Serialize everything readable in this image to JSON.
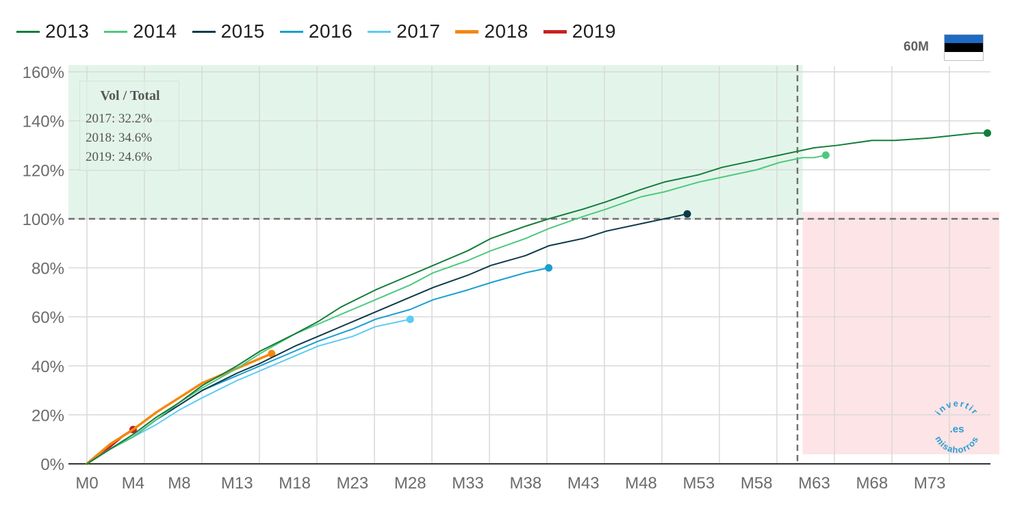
{
  "chart_data": {
    "type": "line",
    "title": "",
    "xlabel": "",
    "ylabel": "",
    "x_range": [
      0,
      79
    ],
    "ylim": [
      0,
      160
    ],
    "x_ticks": [
      0,
      4,
      8,
      13,
      18,
      23,
      28,
      33,
      38,
      43,
      48,
      53,
      58,
      63,
      68,
      73
    ],
    "x_tick_labels": [
      "M0",
      "M4",
      "M8",
      "M13",
      "M18",
      "M23",
      "M28",
      "M33",
      "M38",
      "M43",
      "M48",
      "M53",
      "M58",
      "M63",
      "M68",
      "M73"
    ],
    "y_ticks": [
      0,
      20,
      40,
      60,
      80,
      100,
      120,
      140,
      160
    ],
    "y_tick_labels": [
      "0%",
      "20%",
      "40%",
      "60%",
      "80%",
      "100%",
      "120%",
      "140%",
      "160%"
    ],
    "grid": true,
    "legend_position": "top-left",
    "reference_lines": {
      "horizontal_y": 100,
      "vertical_x": 62
    },
    "shaded_regions": [
      {
        "name": "above-100",
        "x": [
          0,
          62
        ],
        "y": [
          100,
          160
        ],
        "color": "#e3f5ea"
      },
      {
        "name": "beyond-m62",
        "x": [
          62,
          79
        ],
        "y": [
          0,
          100
        ],
        "color": "#fde4e6"
      }
    ],
    "series": [
      {
        "name": "2013",
        "color": "#137d3a",
        "width": 2,
        "x": [
          0,
          2,
          4,
          6,
          8,
          10,
          13,
          15,
          18,
          20,
          22,
          25,
          28,
          30,
          33,
          35,
          38,
          40,
          43,
          45,
          48,
          50,
          53,
          55,
          58,
          60,
          63,
          65,
          68,
          70,
          73,
          75,
          77,
          78
        ],
        "y": [
          0,
          6,
          12,
          19,
          25,
          32,
          40,
          46,
          53,
          58,
          64,
          71,
          77,
          81,
          87,
          92,
          97,
          100,
          104,
          107,
          112,
          115,
          118,
          121,
          124,
          126,
          129,
          130,
          132,
          132,
          133,
          134,
          135,
          135
        ]
      },
      {
        "name": "2014",
        "color": "#4cc97e",
        "width": 2,
        "x": [
          0,
          2,
          4,
          6,
          8,
          10,
          13,
          15,
          18,
          20,
          23,
          25,
          28,
          30,
          33,
          35,
          38,
          40,
          43,
          45,
          48,
          50,
          53,
          55,
          58,
          60,
          62,
          63,
          64
        ],
        "y": [
          0,
          6,
          11,
          18,
          25,
          31,
          39,
          45,
          53,
          57,
          63,
          67,
          73,
          78,
          83,
          87,
          92,
          96,
          101,
          104,
          109,
          111,
          115,
          117,
          120,
          123,
          125,
          125,
          126
        ]
      },
      {
        "name": "2015",
        "color": "#0e3a4a",
        "width": 2,
        "x": [
          0,
          2,
          4,
          6,
          8,
          10,
          13,
          15,
          18,
          20,
          23,
          25,
          28,
          30,
          33,
          35,
          38,
          40,
          43,
          45,
          48,
          50,
          52
        ],
        "y": [
          0,
          6,
          11,
          18,
          24,
          30,
          37,
          41,
          48,
          52,
          58,
          62,
          68,
          72,
          77,
          81,
          85,
          89,
          92,
          95,
          98,
          100,
          102
        ]
      },
      {
        "name": "2016",
        "color": "#1a9ed0",
        "width": 2,
        "x": [
          0,
          2,
          4,
          6,
          8,
          10,
          13,
          15,
          18,
          20,
          23,
          25,
          28,
          30,
          33,
          35,
          38,
          40
        ],
        "y": [
          0,
          6,
          11,
          18,
          24,
          30,
          36,
          40,
          46,
          50,
          55,
          59,
          63,
          67,
          71,
          74,
          78,
          80
        ]
      },
      {
        "name": "2017",
        "color": "#5ccbf4",
        "width": 2,
        "x": [
          0,
          2,
          4,
          6,
          8,
          10,
          13,
          15,
          18,
          20,
          23,
          25,
          27,
          28
        ],
        "y": [
          0,
          6,
          11,
          16,
          22,
          27,
          34,
          38,
          44,
          48,
          52,
          56,
          58,
          59
        ]
      },
      {
        "name": "2018",
        "color": "#f5870f",
        "width": 3.5,
        "x": [
          0,
          2,
          4,
          6,
          8,
          10,
          13,
          15,
          16
        ],
        "y": [
          0,
          8,
          14,
          21,
          27,
          33,
          39,
          43,
          45
        ]
      },
      {
        "name": "2019",
        "color": "#c62121",
        "width": 3.5,
        "x": [
          0,
          1,
          2,
          3,
          4
        ],
        "y": [
          0,
          4,
          7,
          11,
          14
        ]
      }
    ]
  },
  "info_box": {
    "title": "Vol / Total",
    "lines": [
      "2017: 32.2%",
      "2018: 34.6%",
      "2019: 24.6%"
    ]
  },
  "badge": {
    "label": "60M"
  },
  "flag": {
    "stripes": [
      "#1f6bc4",
      "#000000",
      "#ffffff"
    ]
  },
  "watermark": {
    "top": "invertir",
    "center": ".es",
    "bottom": "misahorros",
    "color": "#2a9dd3"
  }
}
